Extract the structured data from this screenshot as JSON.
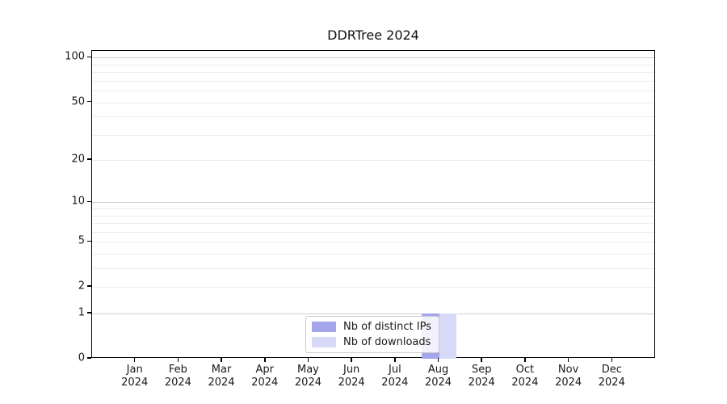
{
  "figure": {
    "title": "DDRTree 2024"
  },
  "chart_data": {
    "type": "bar",
    "title": "DDRTree 2024",
    "categories": [
      "Jan 2024",
      "Feb 2024",
      "Mar 2024",
      "Apr 2024",
      "May 2024",
      "Jun 2024",
      "Jul 2024",
      "Aug 2024",
      "Sep 2024",
      "Oct 2024",
      "Nov 2024",
      "Dec 2024"
    ],
    "series": [
      {
        "name": "Nb of distinct IPs",
        "color": "#a5a5ec",
        "values": [
          0,
          0,
          0,
          0,
          0,
          0,
          0,
          1,
          0,
          0,
          0,
          0
        ]
      },
      {
        "name": "Nb of downloads",
        "color": "#d8d8f7",
        "values": [
          0,
          0,
          0,
          0,
          0,
          0,
          0,
          1,
          0,
          0,
          0,
          0
        ]
      }
    ],
    "xlabel": "",
    "ylabel": "",
    "yscale": "log1p",
    "ylim": [
      0,
      111
    ],
    "y_tick_values": [
      0,
      1,
      2,
      5,
      10,
      20,
      50,
      100
    ],
    "y_tick_labels": [
      "0",
      "1",
      "2",
      "5",
      "10",
      "20",
      "50",
      "100"
    ],
    "y_major_grid_values": [
      1,
      10,
      100
    ],
    "y_minor_grid_values": [
      2,
      3,
      4,
      5,
      6,
      7,
      8,
      9,
      20,
      30,
      40,
      50,
      60,
      70,
      80,
      90
    ],
    "grid": "horizontal",
    "legend_position": "lower center",
    "legend": {
      "items": [
        {
          "label": "Nb of distinct IPs",
          "color": "#a5a5ec"
        },
        {
          "label": "Nb of downloads",
          "color": "#d8d8f7"
        }
      ]
    },
    "colors": {
      "spine": "#000000",
      "major_grid": "#cfcfcf",
      "minor_grid": "#ededed",
      "background": "#ffffff"
    }
  }
}
